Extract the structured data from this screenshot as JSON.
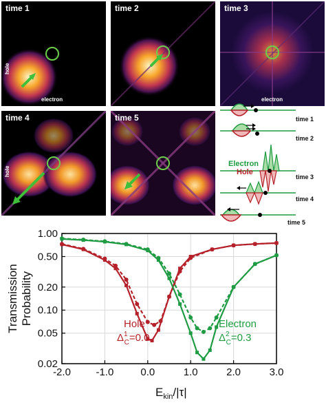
{
  "panels": {
    "p1": {
      "title": "time 1",
      "xlabel": "electron",
      "ylabel": "hole"
    },
    "p2": {
      "title": "time 2"
    },
    "p3": {
      "title": "time 3",
      "xlabel": "electron"
    },
    "p4": {
      "title": "time 4",
      "ylabel": "hole"
    },
    "p5": {
      "title": "time 5"
    }
  },
  "sketch": {
    "times": [
      "time 1",
      "time 2",
      "time 3",
      "time 4",
      "time 5"
    ],
    "electron_label": "Electron",
    "hole_label": "Hole"
  },
  "colors": {
    "hole": "#b5212a",
    "electron": "#1f9b43",
    "circle": "#6ccf4a"
  },
  "chart_data": {
    "type": "line",
    "xlabel": "E_kin/|τ|",
    "xlabel_main": "E",
    "xlabel_sub": "kin",
    "xlabel_rest": "/|τ|",
    "ylabel_line1": "Transmission",
    "ylabel_line2": "Probability",
    "yscale": "log",
    "xlim": [
      -2.0,
      3.0
    ],
    "ylim": [
      0.02,
      1.0
    ],
    "xticks": [
      "-2.0",
      "-1.0",
      "0.0",
      "1.0",
      "2.0",
      "3.0"
    ],
    "yticks": [
      "1.00",
      "0.50",
      "0.20",
      "0.10",
      "0.05",
      "0.02"
    ],
    "annotations": {
      "hole_name": "Hole",
      "hole_delta": "Δ",
      "hole_delta_sup": "1",
      "hole_delta_sub": "C",
      "hole_delta_val": "=0.0",
      "electron_name": "Electron",
      "electron_delta": "Δ",
      "electron_delta_sup": "2",
      "electron_delta_sub": "C",
      "electron_delta_val": "=0.3"
    },
    "series": [
      {
        "color": "#b5212a",
        "style": "solid",
        "x": [
          -2.0,
          -1.5,
          -1.0,
          -0.75,
          -0.5,
          -0.25,
          0.0,
          0.1,
          0.25,
          0.5,
          0.75,
          1.0,
          1.5,
          2.0,
          2.5,
          3.0
        ],
        "y": [
          0.72,
          0.62,
          0.45,
          0.35,
          0.21,
          0.09,
          0.042,
          0.04,
          0.055,
          0.15,
          0.35,
          0.5,
          0.62,
          0.7,
          0.73,
          0.75
        ]
      },
      {
        "color": "#b5212a",
        "style": "dashed",
        "x": [
          -2.0,
          -1.5,
          -1.0,
          -0.75,
          -0.5,
          -0.25,
          0.0,
          0.15,
          0.3,
          0.5,
          0.75,
          1.0,
          1.5,
          2.0,
          2.5,
          3.0
        ],
        "y": [
          0.73,
          0.63,
          0.47,
          0.38,
          0.25,
          0.12,
          0.07,
          0.064,
          0.072,
          0.15,
          0.32,
          0.48,
          0.62,
          0.7,
          0.73,
          0.75
        ]
      },
      {
        "color": "#1f9b43",
        "style": "solid",
        "x": [
          -2.0,
          -1.5,
          -1.0,
          -0.5,
          0.0,
          0.25,
          0.5,
          0.75,
          1.0,
          1.15,
          1.3,
          1.45,
          1.6,
          2.0,
          2.5,
          3.0
        ],
        "y": [
          0.85,
          0.82,
          0.78,
          0.72,
          0.6,
          0.45,
          0.26,
          0.12,
          0.05,
          0.028,
          0.023,
          0.03,
          0.06,
          0.2,
          0.4,
          0.52
        ]
      },
      {
        "color": "#1f9b43",
        "style": "dashed",
        "x": [
          -2.0,
          -1.5,
          -1.0,
          -0.5,
          0.0,
          0.25,
          0.5,
          0.75,
          1.0,
          1.15,
          1.3,
          1.45,
          1.6,
          2.0,
          2.5,
          3.0
        ],
        "y": [
          0.86,
          0.83,
          0.79,
          0.73,
          0.62,
          0.48,
          0.3,
          0.16,
          0.08,
          0.058,
          0.052,
          0.058,
          0.08,
          0.2,
          0.4,
          0.52
        ]
      }
    ]
  }
}
